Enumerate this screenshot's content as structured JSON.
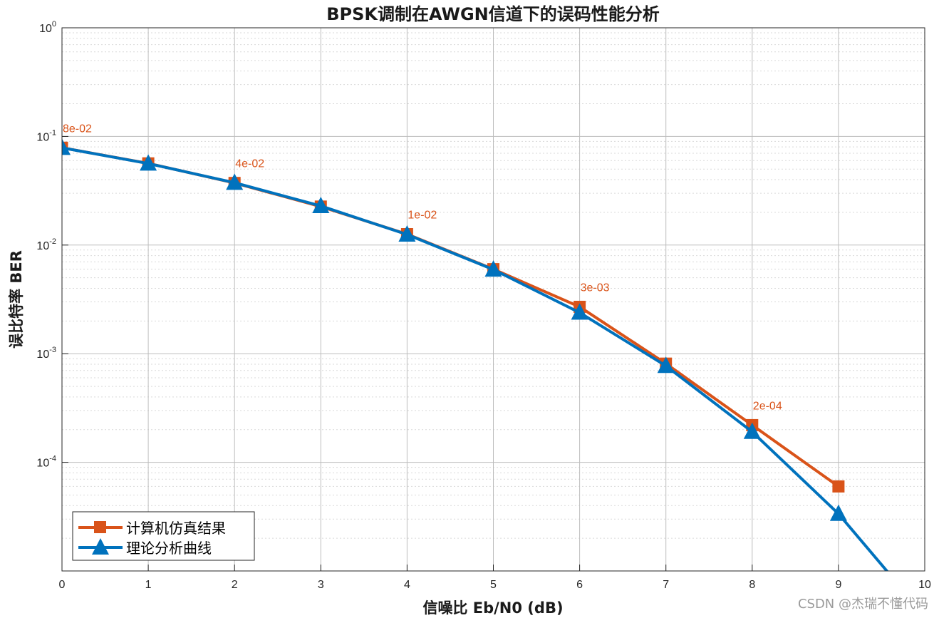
{
  "chart_data": {
    "type": "line",
    "title": "BPSK调制在AWGN信道下的误码性能分析",
    "xlabel": "信噪比 Eb/N0 (dB)",
    "ylabel": "误比特率 BER",
    "xlim": [
      0,
      10
    ],
    "ylim": [
      1e-05,
      1
    ],
    "yscale": "log",
    "grid": true,
    "xticks": [
      0,
      1,
      2,
      3,
      4,
      5,
      6,
      7,
      8,
      9,
      10
    ],
    "xtick_labels": [
      "0",
      "1",
      "2",
      "3",
      "4",
      "5",
      "6",
      "7",
      "8",
      "9",
      "10"
    ],
    "yticks": [
      1,
      0.1,
      0.01,
      0.001,
      0.0001
    ],
    "ytick_labels": [
      {
        "base": "10",
        "exp": "0"
      },
      {
        "base": "10",
        "exp": "-1"
      },
      {
        "base": "10",
        "exp": "-2"
      },
      {
        "base": "10",
        "exp": "-3"
      },
      {
        "base": "10",
        "exp": "-4"
      }
    ],
    "legend_position": "bottom-left",
    "series": [
      {
        "name": "计算机仿真结果",
        "color": "#d95319",
        "marker": "square",
        "x": [
          0,
          1,
          2,
          3,
          4,
          5,
          6,
          7,
          8,
          9
        ],
        "y": [
          0.0787,
          0.0565,
          0.0373,
          0.0226,
          0.0126,
          0.006,
          0.0027,
          0.00081,
          0.00022,
          6e-05
        ]
      },
      {
        "name": "理论分析曲线",
        "color": "#0072bd",
        "marker": "triangle",
        "x": [
          0,
          1,
          2,
          3,
          4,
          5,
          6,
          7,
          8,
          9,
          10
        ],
        "y": [
          0.0786,
          0.0563,
          0.0375,
          0.0229,
          0.0125,
          0.00595,
          0.00239,
          0.000773,
          0.000191,
          3.36e-05,
          3.87e-06
        ]
      }
    ],
    "annotations": [
      {
        "x": 0,
        "y": 0.0787,
        "text": "8e-02"
      },
      {
        "x": 2,
        "y": 0.0373,
        "text": "4e-02"
      },
      {
        "x": 4,
        "y": 0.0126,
        "text": "1e-02"
      },
      {
        "x": 6,
        "y": 0.0027,
        "text": "3e-03"
      },
      {
        "x": 8,
        "y": 0.00022,
        "text": "2e-04"
      }
    ]
  },
  "watermark": "CSDN @杰瑞不懂代码"
}
